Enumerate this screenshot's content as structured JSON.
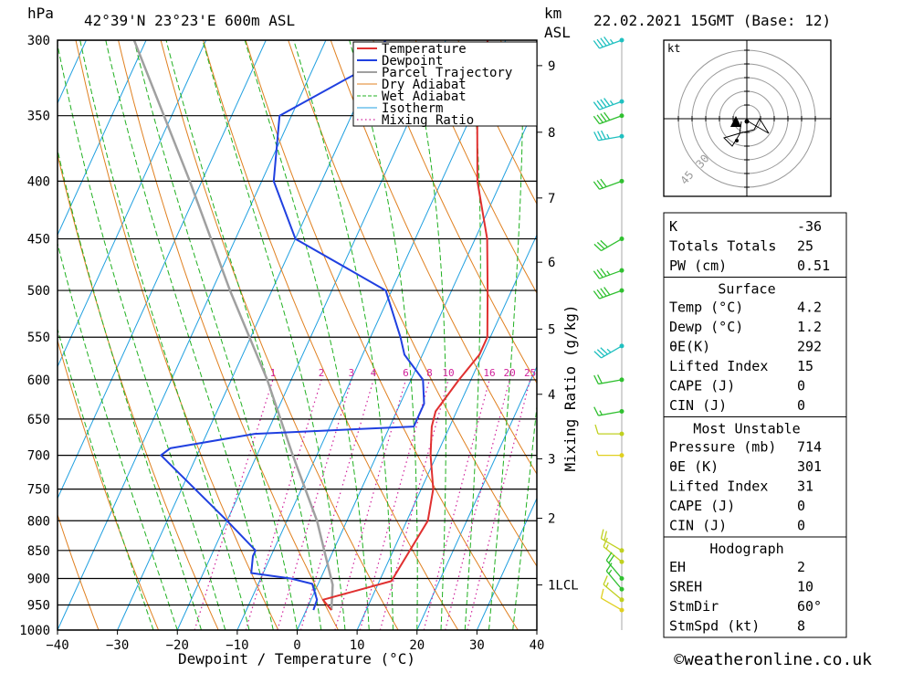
{
  "header": {
    "left_unit": "hPa",
    "location": "42°39'N  23°23'E  600m  ASL",
    "km_unit": "km",
    "km_sub": "ASL",
    "datetime": "22.02.2021  15GMT  (Base: 12)"
  },
  "footer": {
    "credit": "©weatheronline.co.uk"
  },
  "colors": {
    "temperature": "#e03030",
    "dewpoint": "#2040e0",
    "parcel": "#a0a0a0",
    "dry_adiabat": "#e08020",
    "wet_adiabat": "#20b020",
    "isotherm": "#20a0e0",
    "mixing_ratio": "#d0209a",
    "wind_cold": "#20c0c0",
    "wind_mid": "#30c030",
    "wind_warm": "#c0d020"
  },
  "chart_data": {
    "type": "line",
    "title": "",
    "xlabel": "Dewpoint / Temperature (°C)",
    "ylabel": "hPa",
    "right_label": "Mixing Ratio (g/kg)",
    "xlim": [
      -40,
      40
    ],
    "ylim": [
      1000,
      300
    ],
    "x_ticks": [
      -40,
      -30,
      -20,
      -10,
      0,
      10,
      20,
      30,
      40
    ],
    "x_tick_labels": [
      "−40",
      "−30",
      "−20",
      "−10",
      "0",
      "10",
      "20",
      "30",
      "40"
    ],
    "pressure_levels": [
      300,
      350,
      400,
      450,
      500,
      550,
      600,
      650,
      700,
      750,
      800,
      850,
      900,
      950,
      1000
    ],
    "km_ticks": [
      {
        "label": "9",
        "p": 316
      },
      {
        "label": "8",
        "p": 362
      },
      {
        "label": "7",
        "p": 414
      },
      {
        "label": "6",
        "p": 472
      },
      {
        "label": "5",
        "p": 541
      },
      {
        "label": "4",
        "p": 618
      },
      {
        "label": "3",
        "p": 705
      },
      {
        "label": "2",
        "p": 796
      },
      {
        "label": "1LCL",
        "p": 912
      }
    ],
    "mixing_ratio_labels": [
      "1",
      "2",
      "3",
      "4",
      "6",
      "8",
      "10",
      "16",
      "20",
      "25"
    ],
    "mixing_ratio_values": [
      1,
      2,
      3,
      4,
      6,
      8,
      10,
      16,
      20,
      25
    ],
    "legend": [
      "Temperature",
      "Dewpoint",
      "Parcel Trajectory",
      "Dry Adiabat",
      "Wet Adiabat",
      "Isotherm",
      "Mixing Ratio"
    ],
    "legend_position": "top-right",
    "skew_deg_per_ln_p": 37.2,
    "series": [
      {
        "name": "Temperature",
        "points": [
          [
            960,
            4.2
          ],
          [
            940,
            2.0
          ],
          [
            905,
            12.0
          ],
          [
            800,
            13.5
          ],
          [
            750,
            12.0
          ],
          [
            700,
            9.0
          ],
          [
            660,
            7.0
          ],
          [
            640,
            6.5
          ],
          [
            600,
            8.0
          ],
          [
            570,
            9.5
          ],
          [
            550,
            9.5
          ],
          [
            500,
            6.0
          ],
          [
            450,
            2.0
          ],
          [
            400,
            -4.0
          ],
          [
            350,
            -9.0
          ],
          [
            300,
            -13.0
          ]
        ]
      },
      {
        "name": "Dewpoint",
        "points": [
          [
            960,
            1.2
          ],
          [
            940,
            1.0
          ],
          [
            910,
            -1.0
          ],
          [
            900,
            -5.0
          ],
          [
            890,
            -12.0
          ],
          [
            860,
            -13.0
          ],
          [
            850,
            -13.0
          ],
          [
            800,
            -20.0
          ],
          [
            700,
            -36.0
          ],
          [
            690,
            -35.0
          ],
          [
            670,
            -22.0
          ],
          [
            660,
            4.0
          ],
          [
            630,
            4.0
          ],
          [
            600,
            2.0
          ],
          [
            570,
            -3.0
          ],
          [
            550,
            -5.0
          ],
          [
            500,
            -11.0
          ],
          [
            450,
            -30.0
          ],
          [
            400,
            -38.0
          ],
          [
            350,
            -42.0
          ],
          [
            320,
            -32.0
          ],
          [
            300,
            -30.0
          ]
        ]
      },
      {
        "name": "Parcel Trajectory",
        "points": [
          [
            960,
            4.2
          ],
          [
            912,
            2.5
          ],
          [
            800,
            -5.0
          ],
          [
            700,
            -14.0
          ],
          [
            600,
            -24.0
          ],
          [
            500,
            -37.0
          ],
          [
            400,
            -52.0
          ],
          [
            300,
            -72.0
          ]
        ]
      }
    ]
  },
  "hodograph": {
    "unit": "kt",
    "ring_labels": [
      "30",
      "45"
    ]
  },
  "indices": {
    "rows": [
      {
        "label": "K",
        "value": "-36"
      },
      {
        "label": "Totals Totals",
        "value": "25"
      },
      {
        "label": "PW (cm)",
        "value": "0.51"
      }
    ]
  },
  "surface": {
    "title": "Surface",
    "rows": [
      {
        "label": "Temp (°C)",
        "value": "4.2"
      },
      {
        "label": "Dewp (°C)",
        "value": "1.2"
      },
      {
        "label": "θE(K)",
        "value": "292"
      },
      {
        "label": "Lifted Index",
        "value": "15"
      },
      {
        "label": "CAPE (J)",
        "value": "0"
      },
      {
        "label": "CIN (J)",
        "value": "0"
      }
    ]
  },
  "most_unstable": {
    "title": "Most Unstable",
    "rows": [
      {
        "label": "Pressure (mb)",
        "value": "714"
      },
      {
        "label": "θE (K)",
        "value": "301"
      },
      {
        "label": "Lifted Index",
        "value": "31"
      },
      {
        "label": "CAPE (J)",
        "value": "0"
      },
      {
        "label": "CIN (J)",
        "value": "0"
      }
    ]
  },
  "hodograph_table": {
    "title": "Hodograph",
    "rows": [
      {
        "label": "EH",
        "value": "2"
      },
      {
        "label": "SREH",
        "value": "10"
      },
      {
        "label": "StmDir",
        "value": "60°"
      },
      {
        "label": "StmSpd (kt)",
        "value": "8"
      }
    ]
  },
  "wind_barbs": [
    {
      "p": 300,
      "dir": 250,
      "spd": 45,
      "color": "#20c0c0"
    },
    {
      "p": 340,
      "dir": 250,
      "spd": 45,
      "color": "#20c0c0"
    },
    {
      "p": 350,
      "dir": 250,
      "spd": 40,
      "color": "#30c030"
    },
    {
      "p": 365,
      "dir": 260,
      "spd": 35,
      "color": "#20c0c0"
    },
    {
      "p": 400,
      "dir": 250,
      "spd": 30,
      "color": "#30c030"
    },
    {
      "p": 450,
      "dir": 240,
      "spd": 30,
      "color": "#30c030"
    },
    {
      "p": 480,
      "dir": 250,
      "spd": 35,
      "color": "#30c030"
    },
    {
      "p": 500,
      "dir": 250,
      "spd": 40,
      "color": "#30c030"
    },
    {
      "p": 560,
      "dir": 240,
      "spd": 35,
      "color": "#20c0c0"
    },
    {
      "p": 600,
      "dir": 260,
      "spd": 20,
      "color": "#30c030"
    },
    {
      "p": 640,
      "dir": 260,
      "spd": 15,
      "color": "#30c030"
    },
    {
      "p": 670,
      "dir": 270,
      "spd": 10,
      "color": "#c0d020"
    },
    {
      "p": 700,
      "dir": 270,
      "spd": 5,
      "color": "#e0d020"
    },
    {
      "p": 850,
      "dir": 300,
      "spd": 20,
      "color": "#c0d020"
    },
    {
      "p": 870,
      "dir": 310,
      "spd": 15,
      "color": "#c0d020"
    },
    {
      "p": 900,
      "dir": 320,
      "spd": 20,
      "color": "#30c030"
    },
    {
      "p": 920,
      "dir": 320,
      "spd": 15,
      "color": "#30c030"
    },
    {
      "p": 940,
      "dir": 310,
      "spd": 15,
      "color": "#c0d020"
    },
    {
      "p": 960,
      "dir": 300,
      "spd": 10,
      "color": "#e0d020"
    }
  ]
}
